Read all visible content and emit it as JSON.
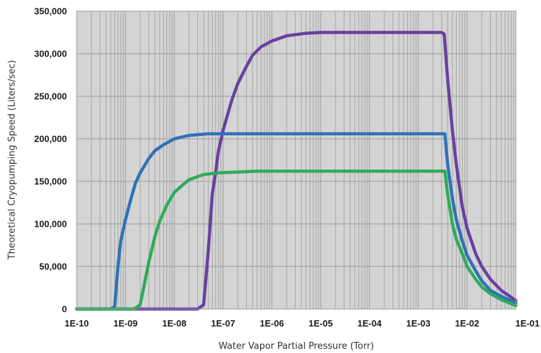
{
  "chart_data": {
    "type": "line",
    "title": "",
    "xlabel": "Water Vapor Partial Pressure (Torr)",
    "ylabel": "Theoretical Cryopumping Speed (Liters/sec)",
    "x_scale": "log",
    "xlim": [
      1e-10,
      0.1
    ],
    "ylim": [
      0,
      350000
    ],
    "x_tick_labels": [
      "1E-10",
      "1E-09",
      "1E-08",
      "1E-07",
      "1E-06",
      "1E-05",
      "1E-04",
      "1E-03",
      "1E-02",
      "1E-01"
    ],
    "y_tick_labels": [
      "0",
      "50,000",
      "100,000",
      "150,000",
      "200,000",
      "250,000",
      "300,000",
      "350,000"
    ],
    "grid": true,
    "legend": "none",
    "colors": {
      "plot_background": "#d4d4d4",
      "grid": "#9a9a9a"
    },
    "series": [
      {
        "color": "#6a3fa0",
        "points": [
          [
            1e-10,
            0
          ],
          [
            1e-09,
            0
          ],
          [
            1e-08,
            0
          ],
          [
            3e-08,
            0
          ],
          [
            4e-08,
            5000
          ],
          [
            5e-08,
            70000
          ],
          [
            6e-08,
            135000
          ],
          [
            7e-08,
            160000
          ],
          [
            8e-08,
            185000
          ],
          [
            1e-07,
            210000
          ],
          [
            1.5e-07,
            245000
          ],
          [
            2e-07,
            265000
          ],
          [
            3e-07,
            285000
          ],
          [
            4e-07,
            298000
          ],
          [
            6e-07,
            308000
          ],
          [
            1e-06,
            315000
          ],
          [
            2e-06,
            321000
          ],
          [
            5e-06,
            324000
          ],
          [
            1e-05,
            325000
          ],
          [
            0.0001,
            325000
          ],
          [
            0.001,
            325000
          ],
          [
            0.003,
            325000
          ],
          [
            0.0034,
            323000
          ],
          [
            0.004,
            270000
          ],
          [
            0.005,
            210000
          ],
          [
            0.006,
            170000
          ],
          [
            0.008,
            120000
          ],
          [
            0.01,
            95000
          ],
          [
            0.015,
            65000
          ],
          [
            0.02,
            50000
          ],
          [
            0.03,
            35000
          ],
          [
            0.05,
            22000
          ],
          [
            0.1,
            10000
          ]
        ]
      },
      {
        "color": "#2f72b8",
        "points": [
          [
            1e-10,
            0
          ],
          [
            5e-10,
            0
          ],
          [
            6e-10,
            3000
          ],
          [
            7e-10,
            50000
          ],
          [
            8e-10,
            80000
          ],
          [
            1e-09,
            105000
          ],
          [
            1.3e-09,
            130000
          ],
          [
            1.6e-09,
            148000
          ],
          [
            2e-09,
            160000
          ],
          [
            3e-09,
            177000
          ],
          [
            4e-09,
            186000
          ],
          [
            6e-09,
            193000
          ],
          [
            1e-08,
            200000
          ],
          [
            2e-08,
            204000
          ],
          [
            5e-08,
            206000
          ],
          [
            1e-07,
            206000
          ],
          [
            1e-05,
            206000
          ],
          [
            0.001,
            206000
          ],
          [
            0.0035,
            206000
          ],
          [
            0.004,
            170000
          ],
          [
            0.005,
            130000
          ],
          [
            0.006,
            105000
          ],
          [
            0.008,
            80000
          ],
          [
            0.01,
            63000
          ],
          [
            0.015,
            45000
          ],
          [
            0.02,
            33000
          ],
          [
            0.03,
            22000
          ],
          [
            0.05,
            15000
          ],
          [
            0.1,
            7000
          ]
        ]
      },
      {
        "color": "#2eab5a",
        "points": [
          [
            1e-10,
            0
          ],
          [
            1.5e-09,
            0
          ],
          [
            2e-09,
            5000
          ],
          [
            3e-09,
            55000
          ],
          [
            4e-09,
            85000
          ],
          [
            5e-09,
            103000
          ],
          [
            7e-09,
            122000
          ],
          [
            1e-08,
            137000
          ],
          [
            1.5e-08,
            146000
          ],
          [
            2e-08,
            152000
          ],
          [
            4e-08,
            158000
          ],
          [
            8e-08,
            160000
          ],
          [
            2e-07,
            161000
          ],
          [
            5e-07,
            162000
          ],
          [
            1e-06,
            162000
          ],
          [
            0.0001,
            162000
          ],
          [
            0.001,
            162000
          ],
          [
            0.0035,
            162000
          ],
          [
            0.004,
            135000
          ],
          [
            0.005,
            100000
          ],
          [
            0.006,
            82000
          ],
          [
            0.008,
            65000
          ],
          [
            0.01,
            50000
          ],
          [
            0.015,
            35000
          ],
          [
            0.02,
            26000
          ],
          [
            0.03,
            18000
          ],
          [
            0.05,
            11000
          ],
          [
            0.1,
            4000
          ]
        ]
      }
    ]
  }
}
